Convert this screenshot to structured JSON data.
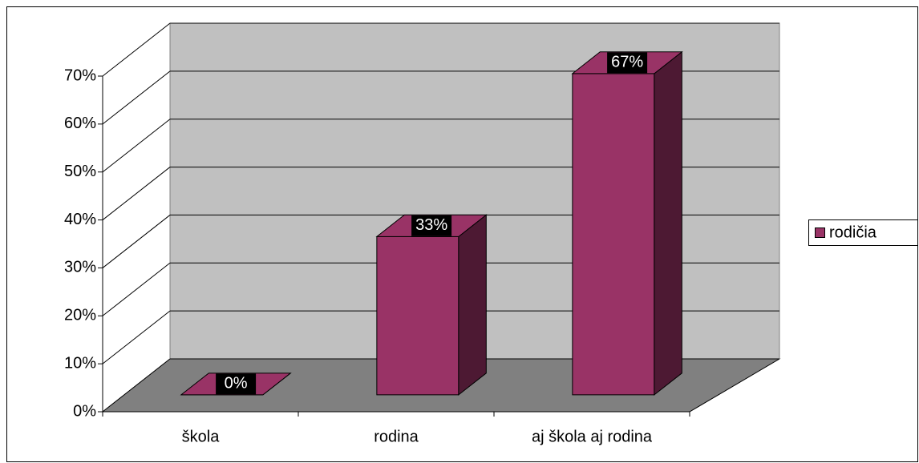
{
  "chart_data": {
    "type": "bar3d",
    "categories": [
      "škola",
      "rodina",
      "aj škola aj rodina"
    ],
    "series": [
      {
        "name": "rodičia",
        "color": "#993366",
        "side_color": "#4d1933",
        "values": [
          0,
          33,
          67
        ],
        "value_labels": [
          "0%",
          "33%",
          "67%"
        ]
      }
    ],
    "ylim": [
      0,
      70
    ],
    "yticks": [
      {
        "value": 0,
        "label": "0%"
      },
      {
        "value": 10,
        "label": "10%"
      },
      {
        "value": 20,
        "label": "20%"
      },
      {
        "value": 30,
        "label": "30%"
      },
      {
        "value": 40,
        "label": "40%"
      },
      {
        "value": 50,
        "label": "50%"
      },
      {
        "value": 60,
        "label": "60%"
      },
      {
        "value": 70,
        "label": "70%"
      }
    ],
    "grid": true,
    "legend": "right"
  }
}
